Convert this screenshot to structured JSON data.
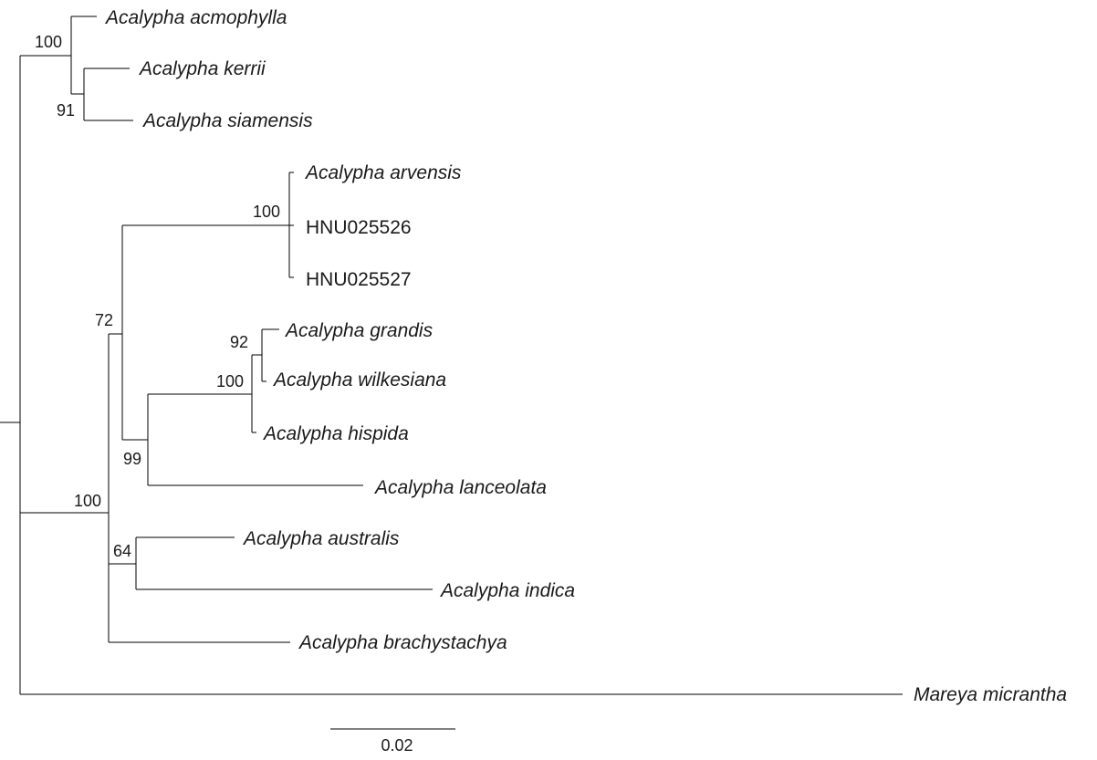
{
  "taxa": {
    "acmophylla": "Acalypha acmophylla",
    "kerrii": "Acalypha kerrii",
    "siamensis": "Acalypha siamensis",
    "arvensis": "Acalypha arvensis",
    "hnu026": "HNU025526",
    "hnu027": "HNU025527",
    "grandis": "Acalypha grandis",
    "wilkesiana": "Acalypha wilkesiana",
    "hispida": "Acalypha hispida",
    "lanceolata": "Acalypha lanceolata",
    "australis": "Acalypha australis",
    "indica": "Acalypha indica",
    "brachystachya": "Acalypha brachystachya",
    "mareya": "Mareya micrantha"
  },
  "support": {
    "acmophylla_clade": "100",
    "kerrii_siamensis": "91",
    "arvensis_clade": "100",
    "arvensis_plus_grandis": "72",
    "grandis_wilkesiana": "92",
    "grandis_hispida": "100",
    "grandis_lanceolata": "99",
    "acalypha_clade": "100",
    "australis_indica": "64"
  },
  "scale_bar": {
    "label": "0.02",
    "value": 0.02
  }
}
